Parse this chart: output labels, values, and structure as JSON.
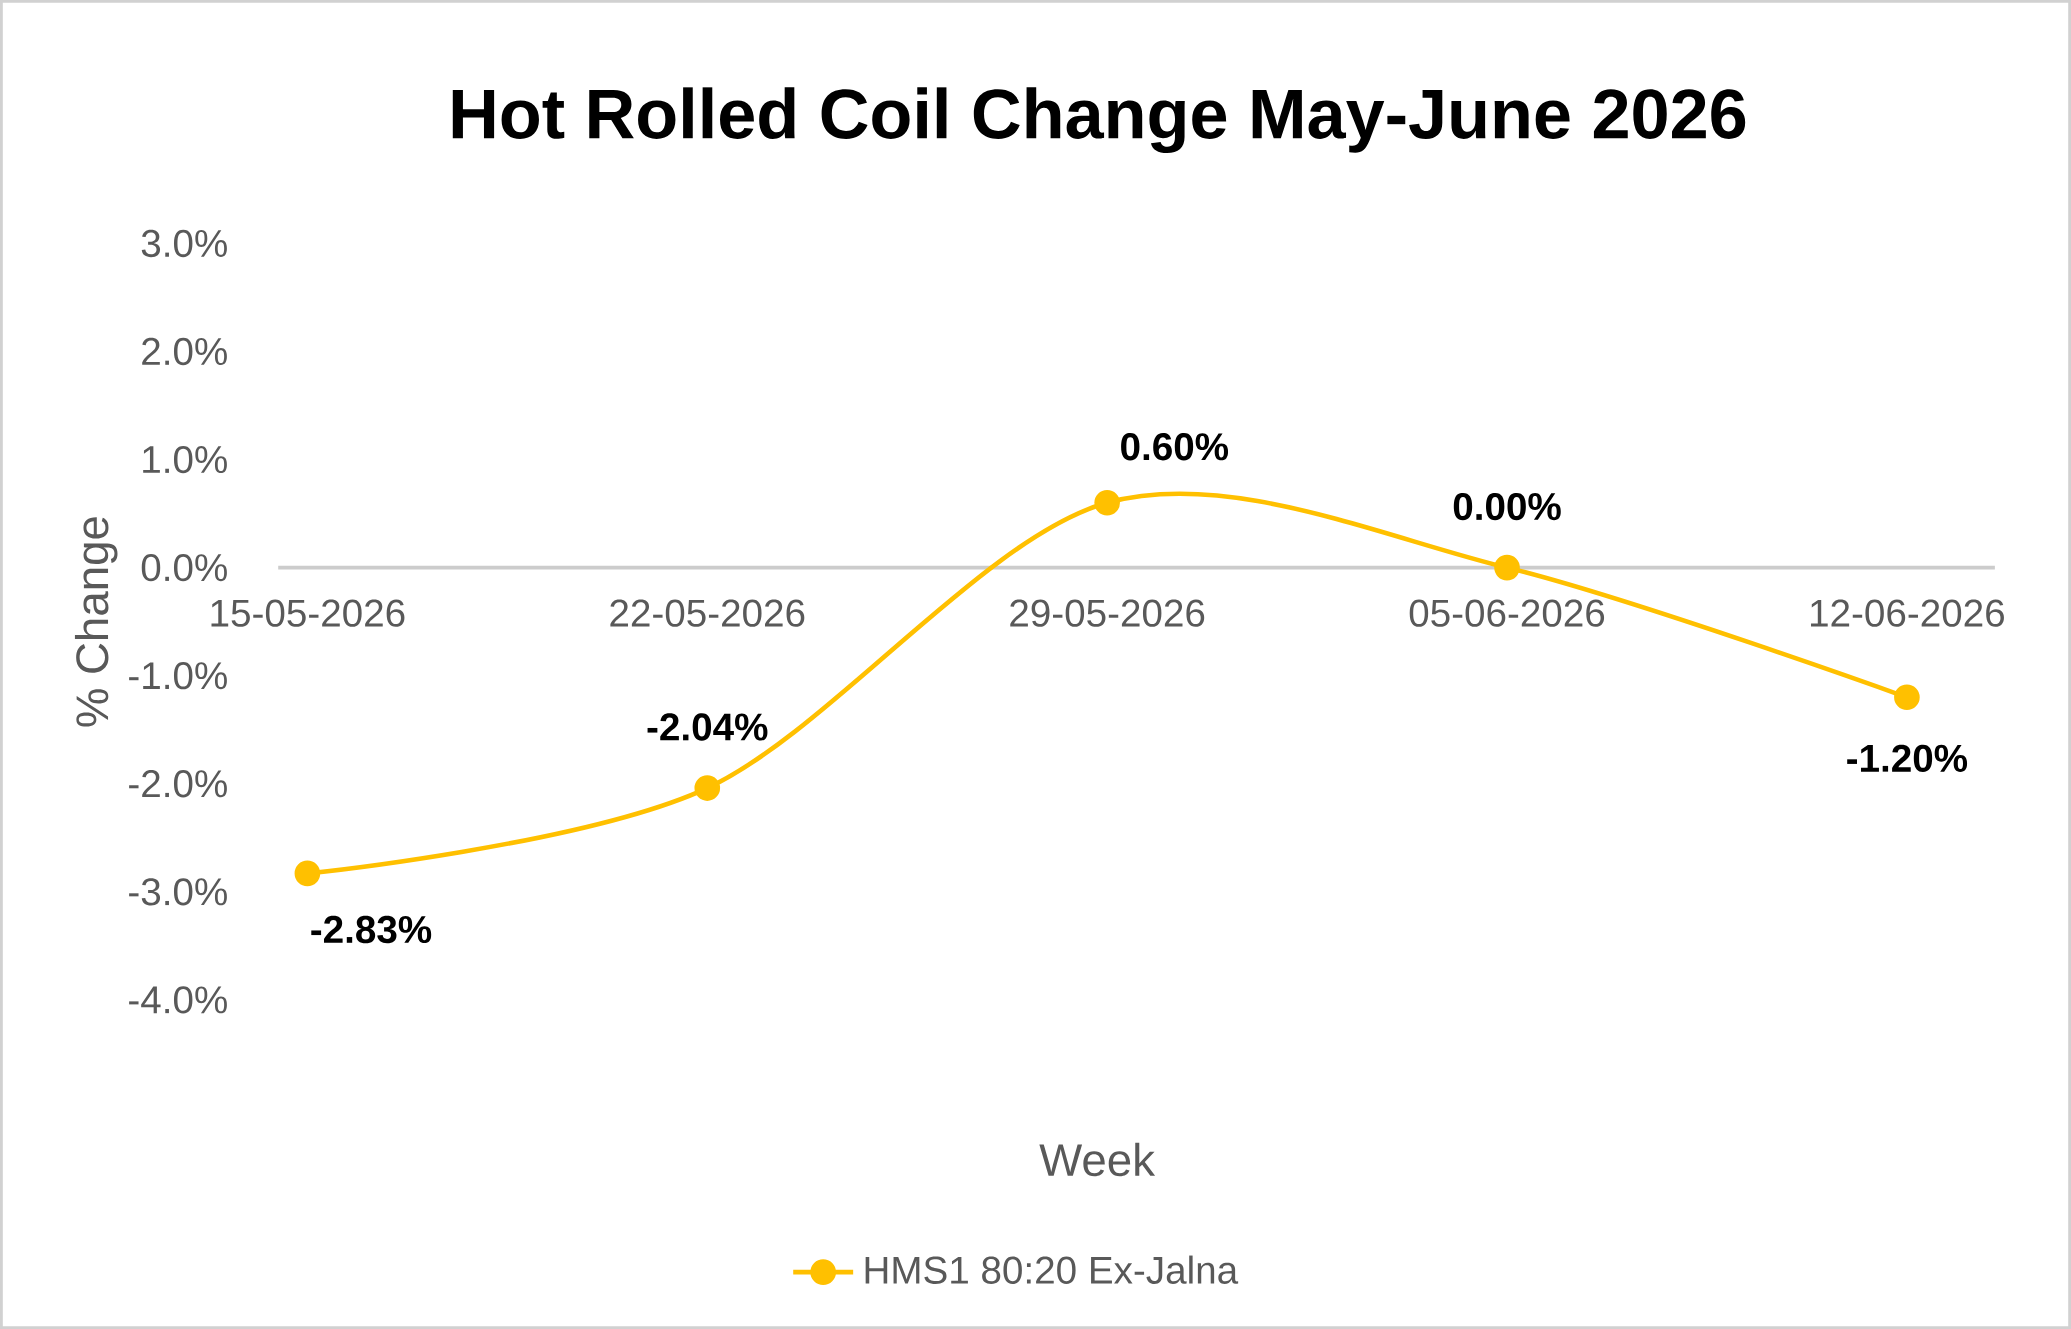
{
  "chart_data": {
    "type": "line",
    "title": "Hot Rolled Coil Change May-June 2026",
    "xlabel": "Week",
    "ylabel": "% Change",
    "categories": [
      "15-05-2026",
      "22-05-2026",
      "29-05-2026",
      "05-06-2026",
      "12-06-2026"
    ],
    "series": [
      {
        "name": "HMS1 80:20 Ex-Jalna",
        "color": "#ffc000",
        "values": [
          -2.83,
          -2.04,
          0.6,
          0.0,
          -1.2
        ],
        "value_labels": [
          "-2.83%",
          "-2.04%",
          "0.60%",
          "0.00%",
          "-1.20%"
        ]
      }
    ],
    "ylim": [
      -4,
      3
    ],
    "yticks": [
      {
        "value": -4,
        "label": "-4.0%"
      },
      {
        "value": -3,
        "label": "-3.0%"
      },
      {
        "value": -2,
        "label": "-2.0%"
      },
      {
        "value": -1,
        "label": "-1.0%"
      },
      {
        "value": 0,
        "label": "0.0%"
      },
      {
        "value": 1,
        "label": "1.0%"
      },
      {
        "value": 2,
        "label": "2.0%"
      },
      {
        "value": 3,
        "label": "3.0%"
      }
    ],
    "grid": false,
    "legend": "bottom",
    "marker": "circle",
    "line_style": "solid"
  }
}
